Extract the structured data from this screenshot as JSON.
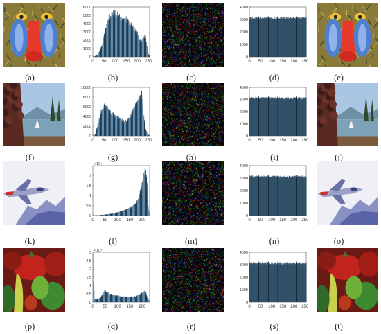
{
  "figure": {
    "rows": [
      {
        "photo": "mandrill",
        "captions": [
          "(a)",
          "(b)",
          "(c)",
          "(d)",
          "(e)"
        ],
        "histogram_plain": {
          "y_ticks": [
            "0",
            "1000",
            "2000",
            "3000",
            "4000",
            "5000",
            "6000"
          ],
          "y_max": 6000,
          "x_ticks": [
            "0",
            "50",
            "100",
            "150",
            "200",
            "250"
          ],
          "exponent": ""
        },
        "histogram_cipher": {
          "y_ticks": [
            "0",
            "1000",
            "2000",
            "3000",
            "4000"
          ],
          "y_max": 4000,
          "level": 3100,
          "x_ticks": [
            "0",
            "50",
            "100",
            "150",
            "200",
            "250"
          ]
        }
      },
      {
        "photo": "lake",
        "captions": [
          "(f)",
          "(g)",
          "(h)",
          "(i)",
          "(j)"
        ],
        "histogram_plain": {
          "y_ticks": [
            "0",
            "2000",
            "4000",
            "6000",
            "8000",
            "10000"
          ],
          "y_max": 10000,
          "x_ticks": [
            "0",
            "50",
            "100",
            "150",
            "200",
            "250"
          ],
          "exponent": ""
        },
        "histogram_cipher": {
          "y_ticks": [
            "0",
            "1000",
            "2000",
            "3000",
            "4000"
          ],
          "y_max": 4000,
          "level": 3100,
          "x_ticks": [
            "0",
            "50",
            "100",
            "150",
            "200",
            "250"
          ]
        }
      },
      {
        "photo": "jet",
        "captions": [
          "(k)",
          "(l)",
          "(m)",
          "(n)",
          "(o)"
        ],
        "histogram_plain": {
          "y_ticks": [
            "0",
            "0.5",
            "1",
            "1.5",
            "2"
          ],
          "y_max": 2.5,
          "x_ticks": [
            "0",
            "50",
            "100",
            "150",
            "200"
          ],
          "exponent": "× 10⁴"
        },
        "histogram_cipher": {
          "y_ticks": [
            "0",
            "1000",
            "2000",
            "3000",
            "4000"
          ],
          "y_max": 4000,
          "level": 3100,
          "x_ticks": [
            "0",
            "50",
            "100",
            "150",
            "200",
            "250"
          ]
        }
      },
      {
        "photo": "peppers",
        "captions": [
          "(p)",
          "(q)",
          "(r)",
          "(s)",
          "(t)"
        ],
        "histogram_plain": {
          "y_ticks": [
            "0",
            "0.5",
            "1",
            "1.5",
            "2",
            "2.5",
            "3"
          ],
          "y_max": 3,
          "x_ticks": [
            "0",
            "50",
            "100",
            "150",
            "200"
          ],
          "exponent": "× 10⁴"
        },
        "histogram_cipher": {
          "y_ticks": [
            "0",
            "1000",
            "2000",
            "3000",
            "4000"
          ],
          "y_max": 4000,
          "level": 3100,
          "x_ticks": [
            "0",
            "50",
            "100",
            "150",
            "200",
            "250"
          ]
        }
      }
    ]
  },
  "chart_data": [
    {
      "type": "bar",
      "ylim": [
        0,
        6000
      ],
      "xlim": [
        0,
        255
      ],
      "grid": false,
      "xticks": [
        0,
        50,
        100,
        150,
        200,
        250
      ],
      "yticks": [
        0,
        1000,
        2000,
        3000,
        4000,
        5000,
        6000
      ],
      "profile": [
        [
          0,
          0
        ],
        [
          20,
          200
        ],
        [
          40,
          1400
        ],
        [
          55,
          3200
        ],
        [
          70,
          4600
        ],
        [
          80,
          5200
        ],
        [
          95,
          5400
        ],
        [
          110,
          5200
        ],
        [
          120,
          4800
        ],
        [
          135,
          4700
        ],
        [
          150,
          4600
        ],
        [
          170,
          3900
        ],
        [
          185,
          3400
        ],
        [
          200,
          2800
        ],
        [
          215,
          1800
        ],
        [
          225,
          2300
        ],
        [
          235,
          2600
        ],
        [
          242,
          1400
        ],
        [
          250,
          300
        ],
        [
          255,
          0
        ]
      ]
    },
    {
      "type": "bar",
      "ylim": [
        0,
        4000
      ],
      "xlim": [
        0,
        255
      ],
      "grid": false,
      "xticks": [
        0,
        50,
        100,
        150,
        200,
        250
      ],
      "yticks": [
        0,
        1000,
        2000,
        3000,
        4000
      ],
      "level": 3100
    },
    {
      "type": "bar",
      "ylim": [
        0,
        10000
      ],
      "xlim": [
        0,
        255
      ],
      "grid": false,
      "xticks": [
        0,
        50,
        100,
        150,
        200,
        250
      ],
      "yticks": [
        0,
        2000,
        4000,
        6000,
        8000,
        10000
      ],
      "profile": [
        [
          0,
          0
        ],
        [
          10,
          300
        ],
        [
          25,
          3000
        ],
        [
          40,
          5600
        ],
        [
          50,
          6200
        ],
        [
          65,
          5800
        ],
        [
          80,
          4800
        ],
        [
          100,
          4200
        ],
        [
          120,
          3600
        ],
        [
          140,
          3000
        ],
        [
          155,
          3200
        ],
        [
          170,
          4400
        ],
        [
          185,
          5800
        ],
        [
          200,
          7400
        ],
        [
          210,
          8200
        ],
        [
          218,
          9300
        ],
        [
          225,
          5200
        ],
        [
          235,
          1600
        ],
        [
          245,
          300
        ],
        [
          255,
          0
        ]
      ]
    },
    {
      "type": "bar",
      "ylim": [
        0,
        4000
      ],
      "xlim": [
        0,
        255
      ],
      "grid": false,
      "xticks": [
        0,
        50,
        100,
        150,
        200,
        250
      ],
      "yticks": [
        0,
        1000,
        2000,
        3000,
        4000
      ],
      "level": 3100
    },
    {
      "type": "bar",
      "ylim": [
        0,
        25000
      ],
      "xlim": [
        0,
        230
      ],
      "grid": false,
      "xticks": [
        0,
        50,
        100,
        150,
        200
      ],
      "yticks": [
        0,
        5000,
        10000,
        15000,
        20000
      ],
      "profile": [
        [
          0,
          0
        ],
        [
          20,
          100
        ],
        [
          50,
          500
        ],
        [
          80,
          1000
        ],
        [
          100,
          1600
        ],
        [
          120,
          2400
        ],
        [
          140,
          3400
        ],
        [
          160,
          4600
        ],
        [
          175,
          6500
        ],
        [
          185,
          9500
        ],
        [
          195,
          14000
        ],
        [
          205,
          20000
        ],
        [
          212,
          23000
        ],
        [
          218,
          18000
        ],
        [
          225,
          3000
        ],
        [
          230,
          0
        ]
      ]
    },
    {
      "type": "bar",
      "ylim": [
        0,
        4000
      ],
      "xlim": [
        0,
        255
      ],
      "grid": false,
      "xticks": [
        0,
        50,
        100,
        150,
        200,
        250
      ],
      "yticks": [
        0,
        1000,
        2000,
        3000,
        4000
      ],
      "level": 3100
    },
    {
      "type": "bar",
      "ylim": [
        0,
        30000
      ],
      "xlim": [
        0,
        230
      ],
      "grid": false,
      "xticks": [
        0,
        50,
        100,
        150,
        200
      ],
      "yticks": [
        0,
        5000,
        10000,
        15000,
        20000,
        25000,
        30000
      ],
      "profile": [
        [
          0,
          0
        ],
        [
          2,
          27000
        ],
        [
          6,
          2000
        ],
        [
          15,
          1600
        ],
        [
          30,
          2600
        ],
        [
          40,
          5000
        ],
        [
          48,
          7200
        ],
        [
          58,
          6000
        ],
        [
          70,
          4800
        ],
        [
          90,
          4200
        ],
        [
          110,
          3500
        ],
        [
          130,
          3200
        ],
        [
          150,
          3300
        ],
        [
          170,
          3600
        ],
        [
          185,
          4300
        ],
        [
          200,
          5800
        ],
        [
          212,
          6600
        ],
        [
          220,
          3000
        ],
        [
          230,
          0
        ]
      ]
    },
    {
      "type": "bar",
      "ylim": [
        0,
        4000
      ],
      "xlim": [
        0,
        255
      ],
      "grid": false,
      "xticks": [
        0,
        50,
        100,
        150,
        200,
        250
      ],
      "yticks": [
        0,
        1000,
        2000,
        3000,
        4000
      ],
      "level": 3100
    }
  ],
  "colors": {
    "bar_dark": "#203a4e",
    "bar_light": "#5c8bb0",
    "bar_fill": "#2f4f66",
    "axis": "#555555"
  }
}
